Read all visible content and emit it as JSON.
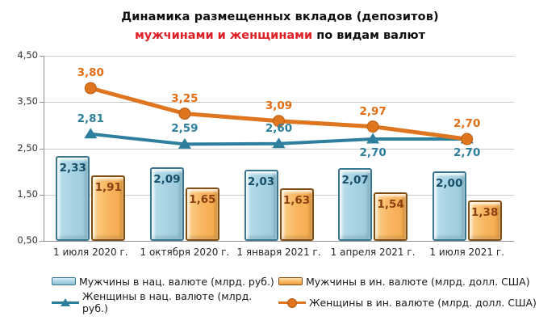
{
  "title": {
    "line1": "Динамика размещенных вкладов (депозитов)",
    "line2_red": "мужчинами и женщинами",
    "line2_black": " по видам валют"
  },
  "colors": {
    "title_red": "#de1f26",
    "bar_men_rub_fill": "#a6d2e2",
    "bar_men_rub_border": "#3a7690",
    "bar_men_usd_fill": "#f8b560",
    "bar_men_usd_border": "#7e4e12",
    "line_women_rub": "#2d7f9d",
    "line_women_usd": "#df751f",
    "gridline": "#c9c9c9",
    "axis": "#8f8f8f"
  },
  "chart_data": {
    "type": "bar+line combo",
    "title": "Динамика размещенных вкладов (депозитов) мужчинами и женщинами по видам валют",
    "categories": [
      "1 июля 2020 г.",
      "1 октября 2020 г.",
      "1 января 2021 г.",
      "1 апреля 2021 г.",
      "1 июля 2021 г."
    ],
    "ylim": [
      0.5,
      4.5
    ],
    "grid": true,
    "legend_position": "bottom",
    "y_ticks": [
      {
        "v": 4.5,
        "label": "4,50"
      },
      {
        "v": 3.5,
        "label": "3,50"
      },
      {
        "v": 2.5,
        "label": "2,50"
      },
      {
        "v": 1.5,
        "label": "1,50"
      },
      {
        "v": 0.5,
        "label": "0,50"
      }
    ],
    "series": [
      {
        "name": "Мужчины в нац. валюте (млрд. руб.)",
        "type": "bar",
        "values": [
          2.33,
          2.09,
          2.03,
          2.07,
          2.0
        ],
        "value_labels": [
          "2,33",
          "2,09",
          "2,03",
          "2,07",
          "2,00"
        ],
        "color": "#a6d2e2",
        "label_color": "#174f68"
      },
      {
        "name": "Мужчины в ин. валюте (млрд. долл. США)",
        "type": "bar",
        "values": [
          1.91,
          1.65,
          1.63,
          1.54,
          1.38
        ],
        "value_labels": [
          "1,91",
          "1,65",
          "1,63",
          "1,54",
          "1,38"
        ],
        "color": "#f8b560",
        "label_color": "#8a4012"
      },
      {
        "name": "Женщины в нац. валюте (млрд. руб.)",
        "type": "line",
        "marker": "triangle",
        "values": [
          2.81,
          2.59,
          2.6,
          2.7,
          2.7
        ],
        "value_labels": [
          "2,81",
          "2,59",
          "2,60",
          "2,70",
          "2,70"
        ],
        "label_positions": [
          "above",
          "above",
          "above",
          "below",
          "below"
        ],
        "color": "#2d7f9d",
        "label_color": "#2d7f9d"
      },
      {
        "name": "Женщины в ин. валюте (млрд. долл. США)",
        "type": "line",
        "marker": "circle",
        "values": [
          3.8,
          3.25,
          3.09,
          2.97,
          2.7
        ],
        "value_labels": [
          "3,80",
          "3,25",
          "3,09",
          "2,97",
          "2,70"
        ],
        "label_positions": [
          "above",
          "above",
          "above",
          "above",
          "above"
        ],
        "color": "#df751f",
        "marker_stroke": "#b85c10",
        "label_color": "#e36d15"
      }
    ]
  },
  "legend": {
    "items": [
      {
        "label": "Мужчины в нац. валюте (млрд. руб.)"
      },
      {
        "label": "Мужчины в ин. валюте (млрд. долл. США)"
      },
      {
        "label": "Женщины в нац. валюте (млрд. руб.)"
      },
      {
        "label": "Женщины в ин. валюте (млрд. долл. США)"
      }
    ]
  }
}
